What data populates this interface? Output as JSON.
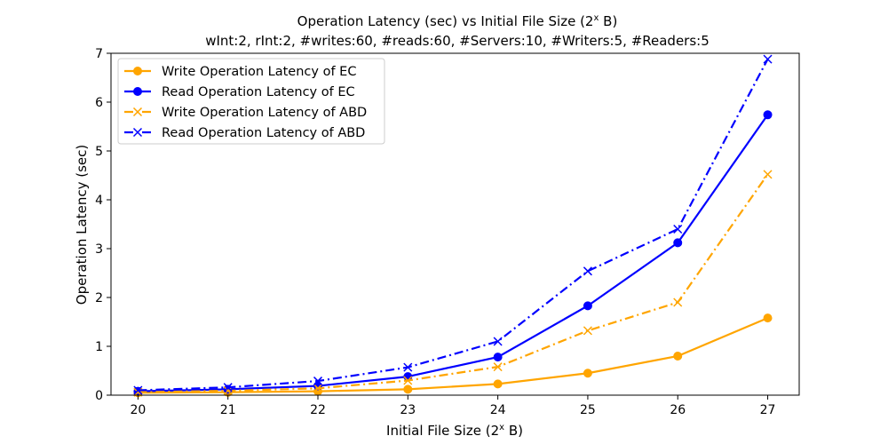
{
  "chart_data": {
    "type": "line",
    "title": "Operation Latency (sec) vs Initial File Size (2",
    "title_sup": "x",
    "title_suffix": " B)",
    "subtitle": "wInt:2, rInt:2, #writes:60, #reads:60, #Servers:10, #Writers:5, #Readers:5",
    "xlabel": "Initial File Size (2",
    "xlabel_sup": "x",
    "xlabel_suffix": " B)",
    "ylabel": "Operation Latency (sec)",
    "x": [
      20,
      21,
      22,
      23,
      24,
      25,
      26,
      27
    ],
    "xlim": [
      19.7,
      27.35
    ],
    "ylim": [
      0,
      7
    ],
    "yticks": [
      0,
      1,
      2,
      3,
      4,
      5,
      6,
      7
    ],
    "legend_position": "top-left",
    "series": [
      {
        "name": "Write Operation Latency of EC",
        "color": "#ffa500",
        "linestyle": "solid",
        "marker": "circle",
        "values": [
          0.05,
          0.06,
          0.08,
          0.12,
          0.23,
          0.45,
          0.8,
          1.58
        ]
      },
      {
        "name": "Read Operation Latency of EC",
        "color": "#0000ff",
        "linestyle": "solid",
        "marker": "circle",
        "values": [
          0.08,
          0.12,
          0.19,
          0.38,
          0.78,
          1.83,
          3.12,
          5.74
        ]
      },
      {
        "name": "Write Operation Latency of ABD",
        "color": "#ffa500",
        "linestyle": "dashdot",
        "marker": "x",
        "values": [
          0.06,
          0.09,
          0.14,
          0.3,
          0.58,
          1.32,
          1.9,
          4.52
        ]
      },
      {
        "name": "Read Operation Latency of ABD",
        "color": "#0000ff",
        "linestyle": "dashdot",
        "marker": "x",
        "values": [
          0.1,
          0.16,
          0.29,
          0.57,
          1.1,
          2.54,
          3.4,
          6.88
        ]
      }
    ]
  }
}
